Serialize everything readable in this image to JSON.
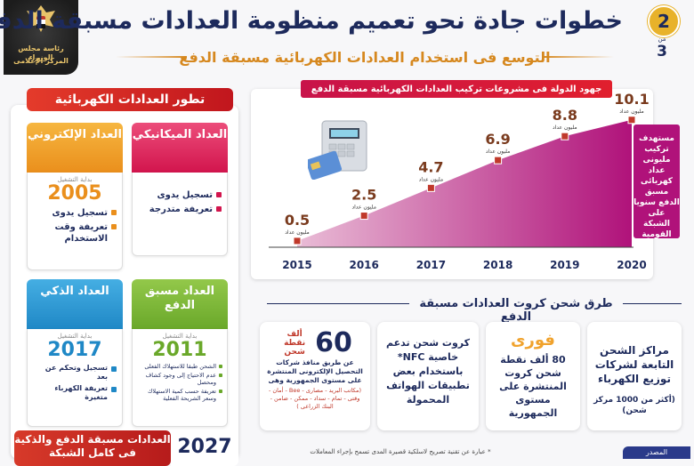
{
  "header": {
    "title": "خطوات جادة نحو تعميم منظومة العدادات مسبقة الدفع",
    "subtitle": "التوسع فى استخدام العدادات الكهربائية مسبقة الدفع",
    "page_current": "2",
    "page_of": "من",
    "page_total": "3",
    "logo_line1": "رئاسة مجلس الوزراء",
    "logo_line2": "المركز الإعلامى"
  },
  "left": {
    "heading": "تطور العدادات الكهربائية",
    "start_label": "بداية التشغيل",
    "meters": [
      {
        "name": "العداد الميكانيكي",
        "color": "#e2245d",
        "year": "",
        "features": [
          "تسجيل يدوى",
          "تعريفة متدرجة"
        ]
      },
      {
        "name": "العداد الإلكتروني",
        "color": "#f0a22c",
        "year": "2005",
        "features": [
          "تسجيل يدوى",
          "تعريفة وقت الاستخدام"
        ]
      },
      {
        "name": "العداد مسبق الدفع",
        "color": "#7cb733",
        "year": "2011",
        "features": [
          "الشحن طبقا للاستهلاك الفعلى",
          "عدم الاحتياج إلى وجود كشاف ومحصل",
          "تعريفة حسب كمية الاستهلاك وسعر الشريحة الفعلية"
        ]
      },
      {
        "name": "العداد الذكي",
        "color": "#2f9bd6",
        "year": "2017",
        "features": [
          "تسجيل وتحكم عن بعد",
          "تعريفة الكهرباء متغيرة"
        ]
      }
    ],
    "final_text": "العدادات مسبقة الدفع والذكية فى كامل الشبكة",
    "final_year": "2027"
  },
  "chart_heading": "جهود الدولة فى مشروعات تركيب العدادات الكهربائية مسبقة الدفع",
  "chart_note": "مستهدف تركيب مليونى عداد كهربائى مسبق الدفع سنويا على الشبكة القومية",
  "chart_data": {
    "type": "area",
    "categories": [
      "2015",
      "2016",
      "2017",
      "2018",
      "2019",
      "2020"
    ],
    "values": [
      0.5,
      2.5,
      4.7,
      6.9,
      8.8,
      10.1
    ],
    "value_labels": [
      "0.5",
      "2.5",
      "4.7",
      "6.9",
      "8.8",
      "10.1"
    ],
    "unit_label": "مليون عداد",
    "ylim": [
      0,
      11
    ],
    "colors": {
      "fill_start": "#e6b3cf",
      "fill_end": "#b0127a",
      "marker": "#c0392b",
      "value": "#7a3b1e"
    }
  },
  "methods": {
    "heading": "طرق شحن كروت العدادات مسبقة الدفع",
    "cards": [
      {
        "title": "مراكز الشحن التابعة لشركات توزيع الكهرباء",
        "extra": "(أكثر من 1000 مركز شحن)"
      },
      {
        "brand": "فورى",
        "text": "80 ألف نقطة شحن كروت المنتشرة على مستوى الجمهورية"
      },
      {
        "text": "كروت شحن تدعم خاصية NFC* باستخدام بعض تطبيقات الهواتف المحمولة"
      },
      {
        "big": "60",
        "big_label": "ألف نقطة شحن",
        "text": "عن طريق منافذ شركات التحصيل الإلكترونى المنتشرة على مستوى الجمهورية وهى",
        "list": "(مكاتب البريد - مصارى - Bee - أمان - وقتى - تمام - سداد - ممكن - ضامن - البنك الزراعى )"
      }
    ],
    "footnote": "* عبارة عن تقنية تصريح لاسلكية قصيرة المدى تسمح بإجراء المعاملات",
    "source": "المصدر"
  }
}
